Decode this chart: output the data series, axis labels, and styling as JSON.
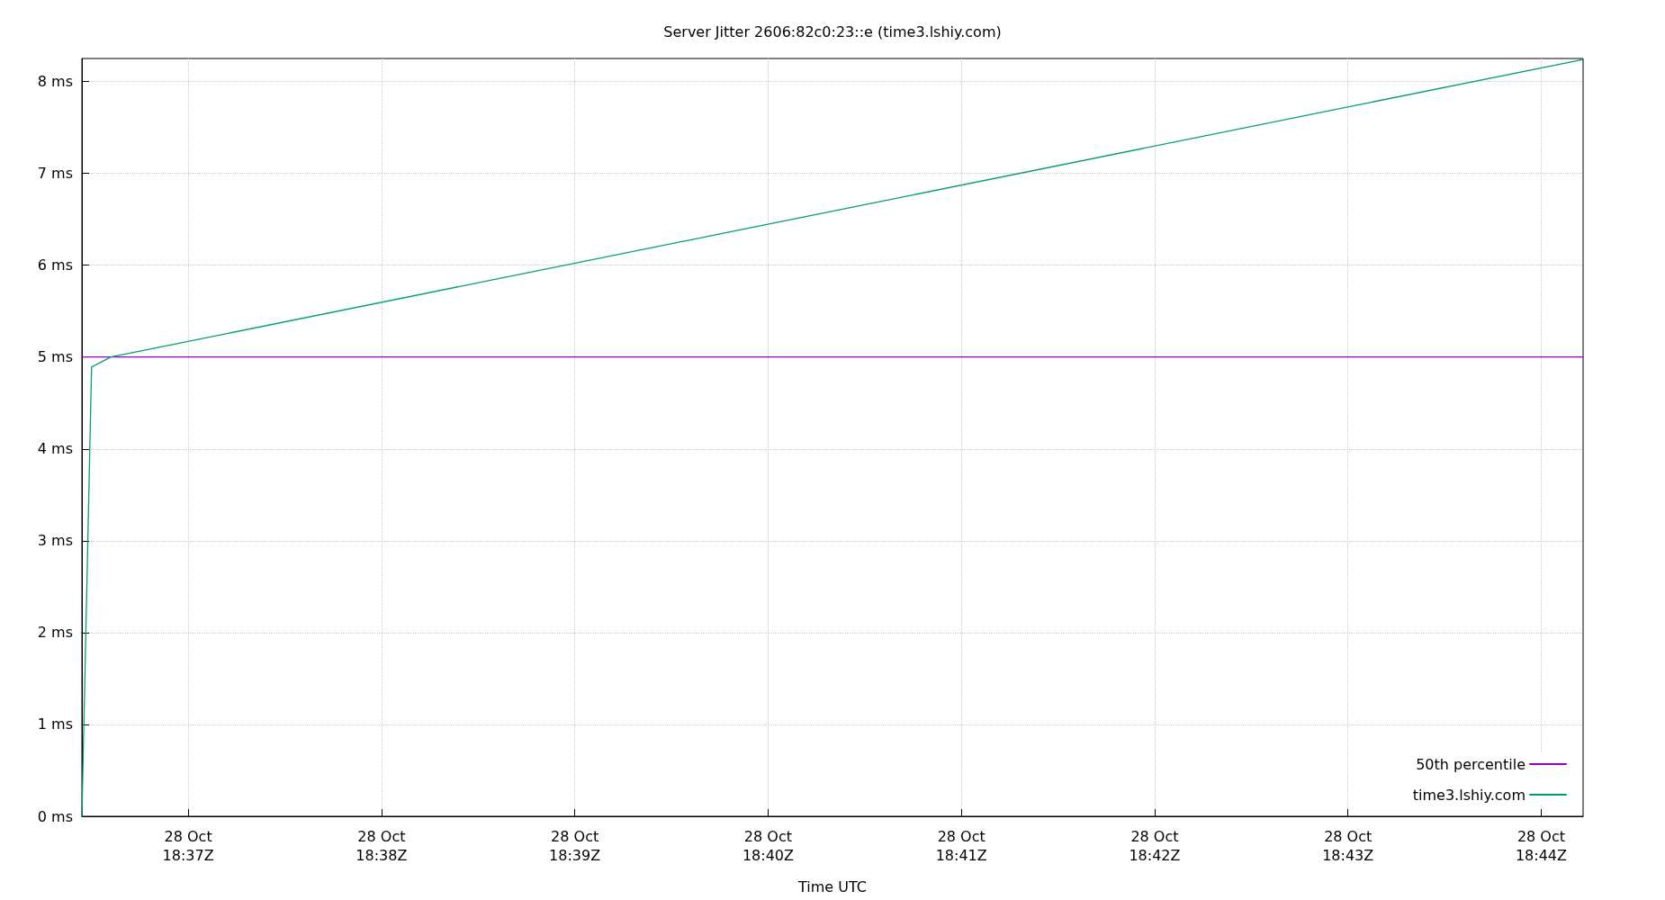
{
  "chart_data": {
    "type": "line",
    "title": "Server Jitter 2606:82c0:23::e (time3.lshiy.com)",
    "xlabel": "Time UTC",
    "series": [
      {
        "name": "50th percentile",
        "color": "#9400d3",
        "x": [
          "--10-28T18:36:27",
          "--10-28T18:44:13"
        ],
        "values": [
          5,
          5
        ]
      },
      {
        "name": "time3.lshiy.com",
        "color": "#009e73",
        "x": [
          "--10-28T18:36:27",
          "--10-28T18:36:30",
          "--10-28T18:36:36",
          "--10-28T18:44:13"
        ],
        "values": [
          0,
          4.89,
          5.0,
          8.24
        ]
      }
    ],
    "xlim": [
      "--10-28T18:36:27",
      "--10-28T18:44:13"
    ],
    "xticks": [
      {
        "value": "--10-28T18:37",
        "label": "28 Oct\n18:37Z"
      },
      {
        "value": "--10-28T18:38",
        "label": "28 Oct\n18:38Z"
      },
      {
        "value": "--10-28T18:39",
        "label": "28 Oct\n18:39Z"
      },
      {
        "value": "--10-28T18:40",
        "label": "28 Oct\n18:40Z"
      },
      {
        "value": "--10-28T18:41",
        "label": "28 Oct\n18:41Z"
      },
      {
        "value": "--10-28T18:42",
        "label": "28 Oct\n18:42Z"
      },
      {
        "value": "--10-28T18:43",
        "label": "28 Oct\n18:43Z"
      },
      {
        "value": "--10-28T18:44",
        "label": "28 Oct\n18:44Z"
      }
    ],
    "ylim": [
      0,
      8.25
    ],
    "yticks": [
      {
        "value": 0,
        "label": "0 ms"
      },
      {
        "value": 1,
        "label": "1 ms"
      },
      {
        "value": 2,
        "label": "2 ms"
      },
      {
        "value": 3,
        "label": "3 ms"
      },
      {
        "value": 4,
        "label": "4 ms"
      },
      {
        "value": 5,
        "label": "5 ms"
      },
      {
        "value": 6,
        "label": "6 ms"
      },
      {
        "value": 7,
        "label": "7 ms"
      },
      {
        "value": 8,
        "label": "8 ms"
      }
    ],
    "grid": true,
    "legend": "bottom right",
    "marker": "none",
    "line_style": "solid"
  }
}
